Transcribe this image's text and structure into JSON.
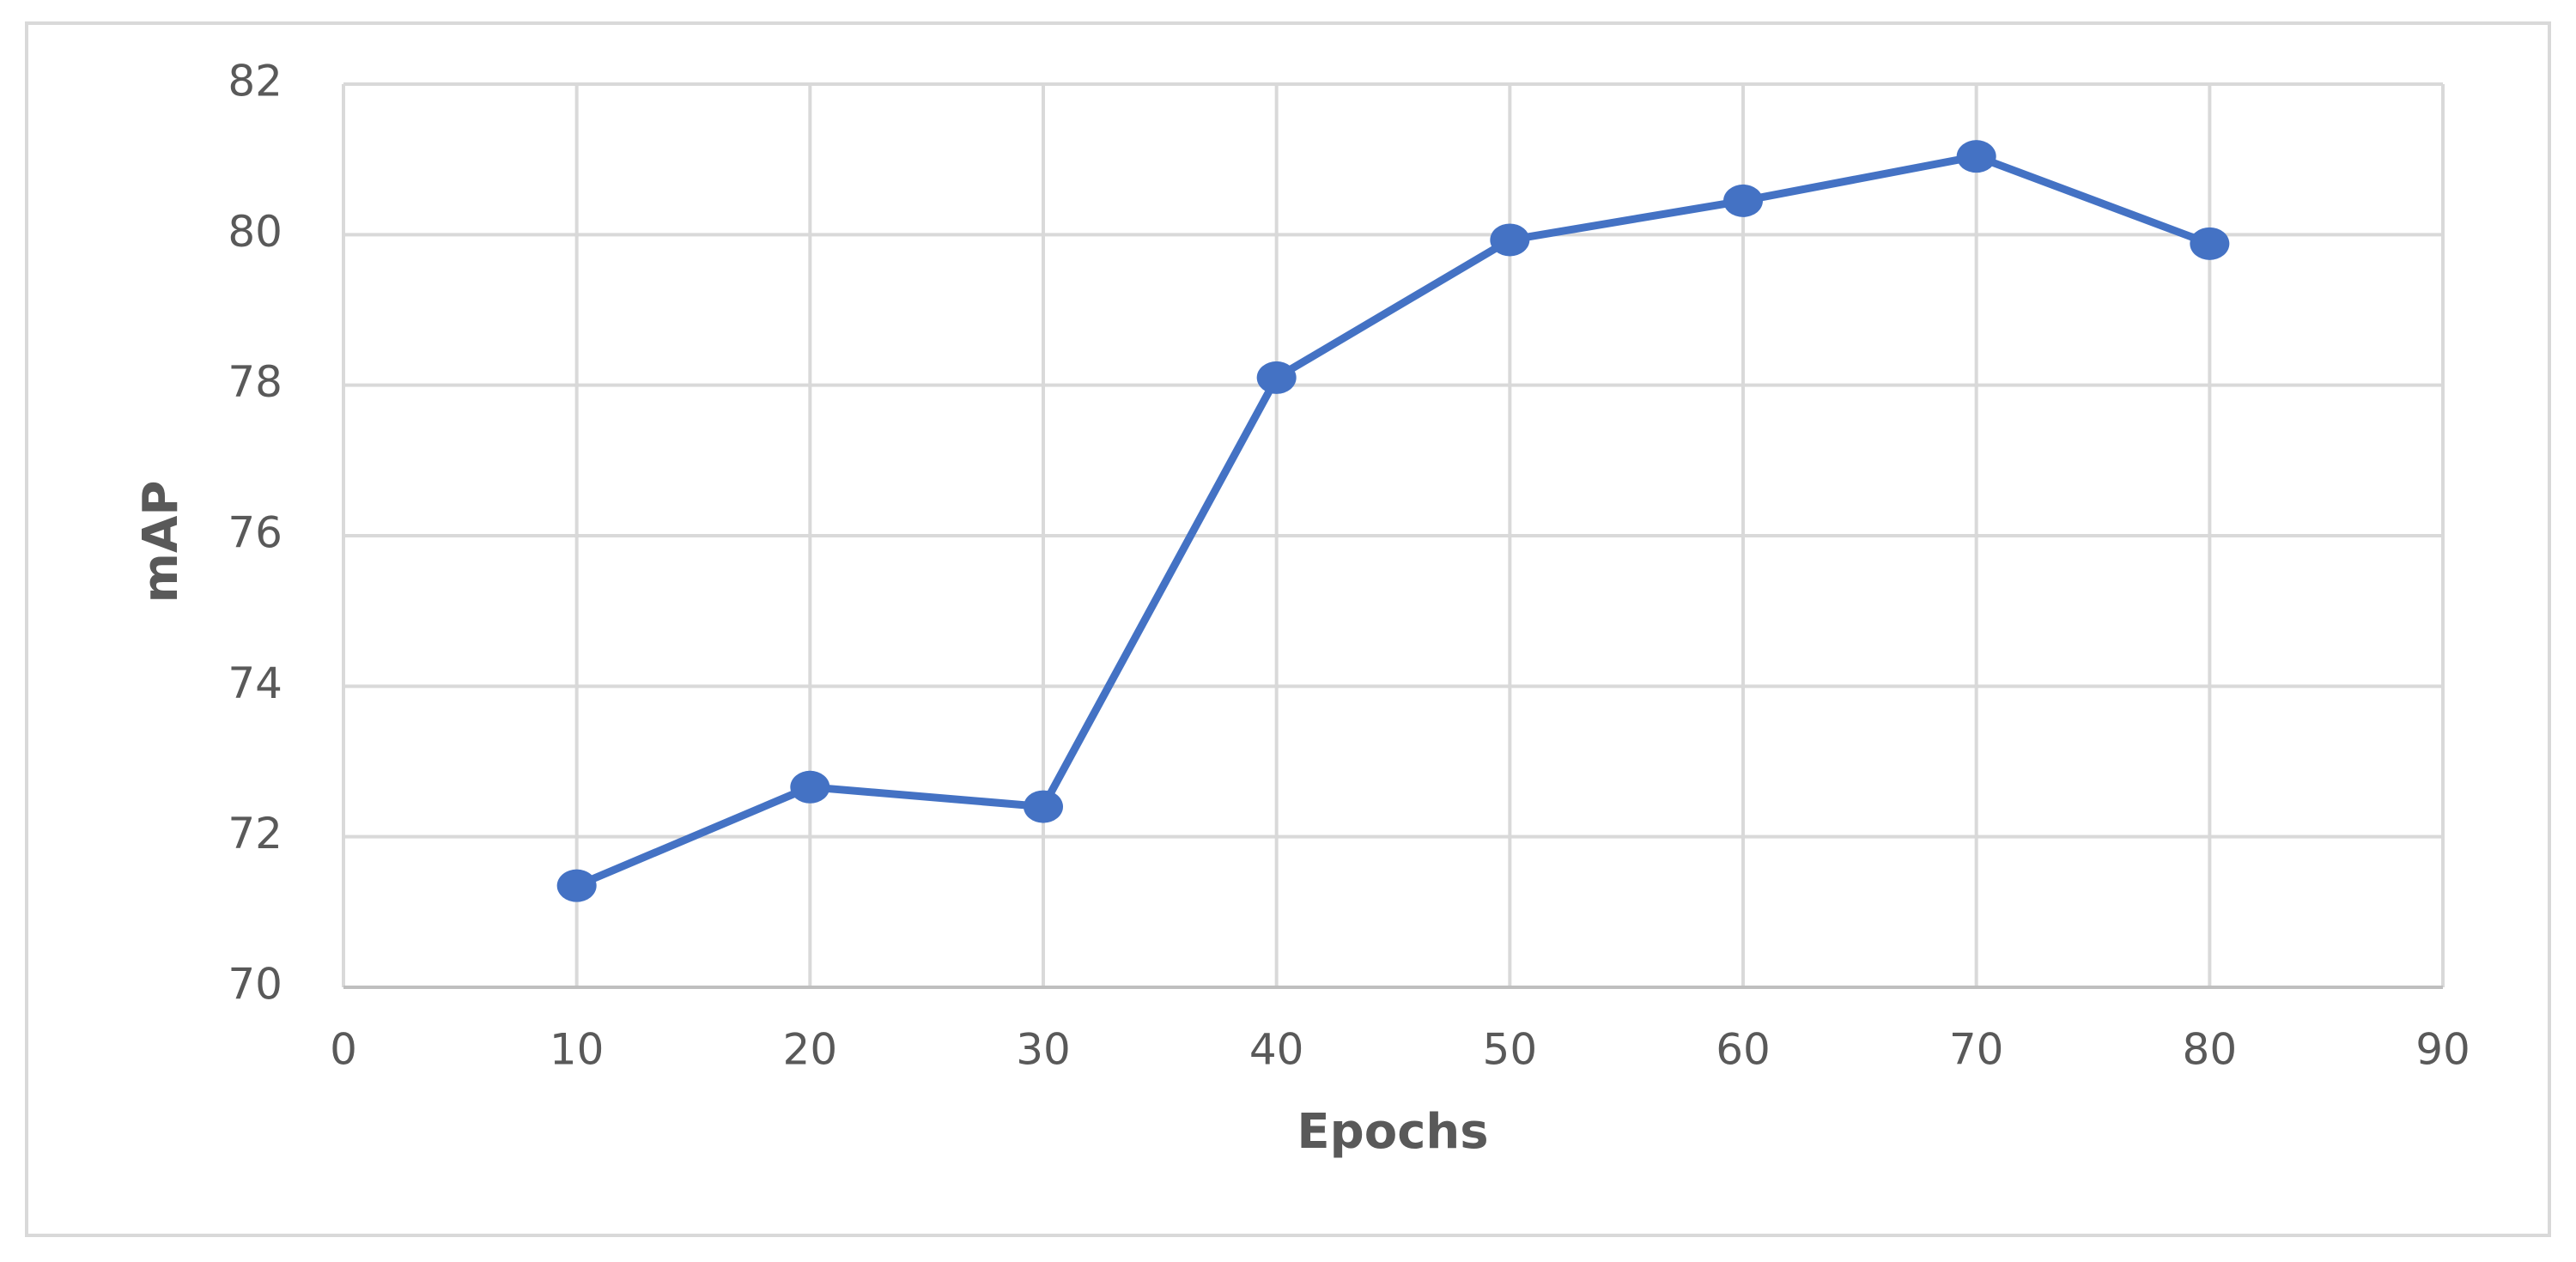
{
  "chart_data": {
    "type": "line",
    "x": [
      10,
      20,
      30,
      40,
      50,
      60,
      70,
      80
    ],
    "values": [
      71.35,
      72.66,
      72.4,
      78.1,
      79.93,
      80.45,
      81.04,
      79.88
    ],
    "color": "#4472c4",
    "xlabel": "Epochs",
    "ylabel": "mAP",
    "xlim": [
      0,
      90
    ],
    "xticks": [
      0,
      10,
      20,
      30,
      40,
      50,
      60,
      70,
      80,
      90
    ],
    "ylim": [
      70,
      82
    ],
    "yticks": [
      70,
      72,
      74,
      76,
      78,
      80,
      82
    ],
    "grid": true,
    "markers": true
  }
}
